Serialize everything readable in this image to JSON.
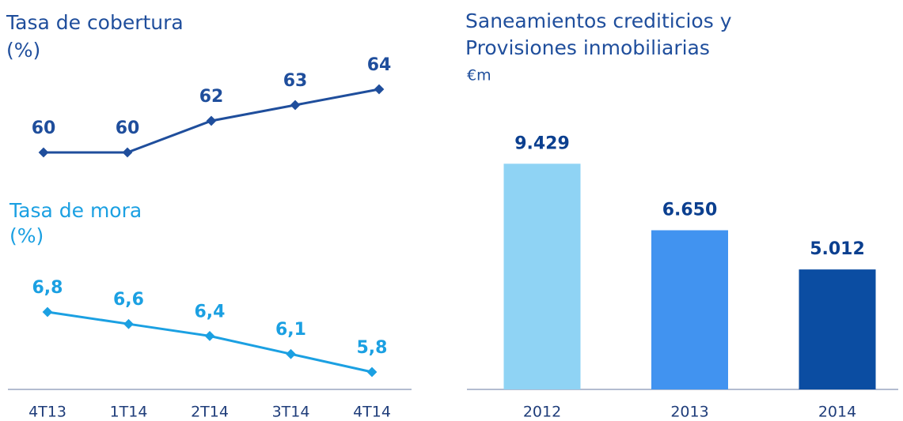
{
  "chart_data": [
    {
      "type": "line",
      "title": "Tasa de cobertura",
      "subtitle": "(%)",
      "color": "#1f4e9c",
      "values": [
        60,
        60,
        62,
        63,
        64
      ]
    },
    {
      "type": "line",
      "title": "Tasa de mora",
      "subtitle": "(%)",
      "color": "#1ba0e2",
      "categories": [
        "4T13",
        "1T14",
        "2T14",
        "3T14",
        "4T14"
      ],
      "values": [
        6.8,
        6.6,
        6.4,
        6.1,
        5.8
      ],
      "value_labels": [
        "6,8",
        "6,6",
        "6,4",
        "6,1",
        "5,8"
      ]
    },
    {
      "type": "bar",
      "title": [
        "Saneamientos crediticios y",
        "Provisiones inmobiliarias"
      ],
      "subtitle": "€m",
      "categories": [
        "2012",
        "2013",
        "2014"
      ],
      "values": [
        9429,
        6650,
        5012
      ],
      "value_labels": [
        "9.429",
        "6.650",
        "5.012"
      ],
      "colors": [
        "#8fd3f4",
        "#4193f0",
        "#0b4da2"
      ]
    }
  ]
}
